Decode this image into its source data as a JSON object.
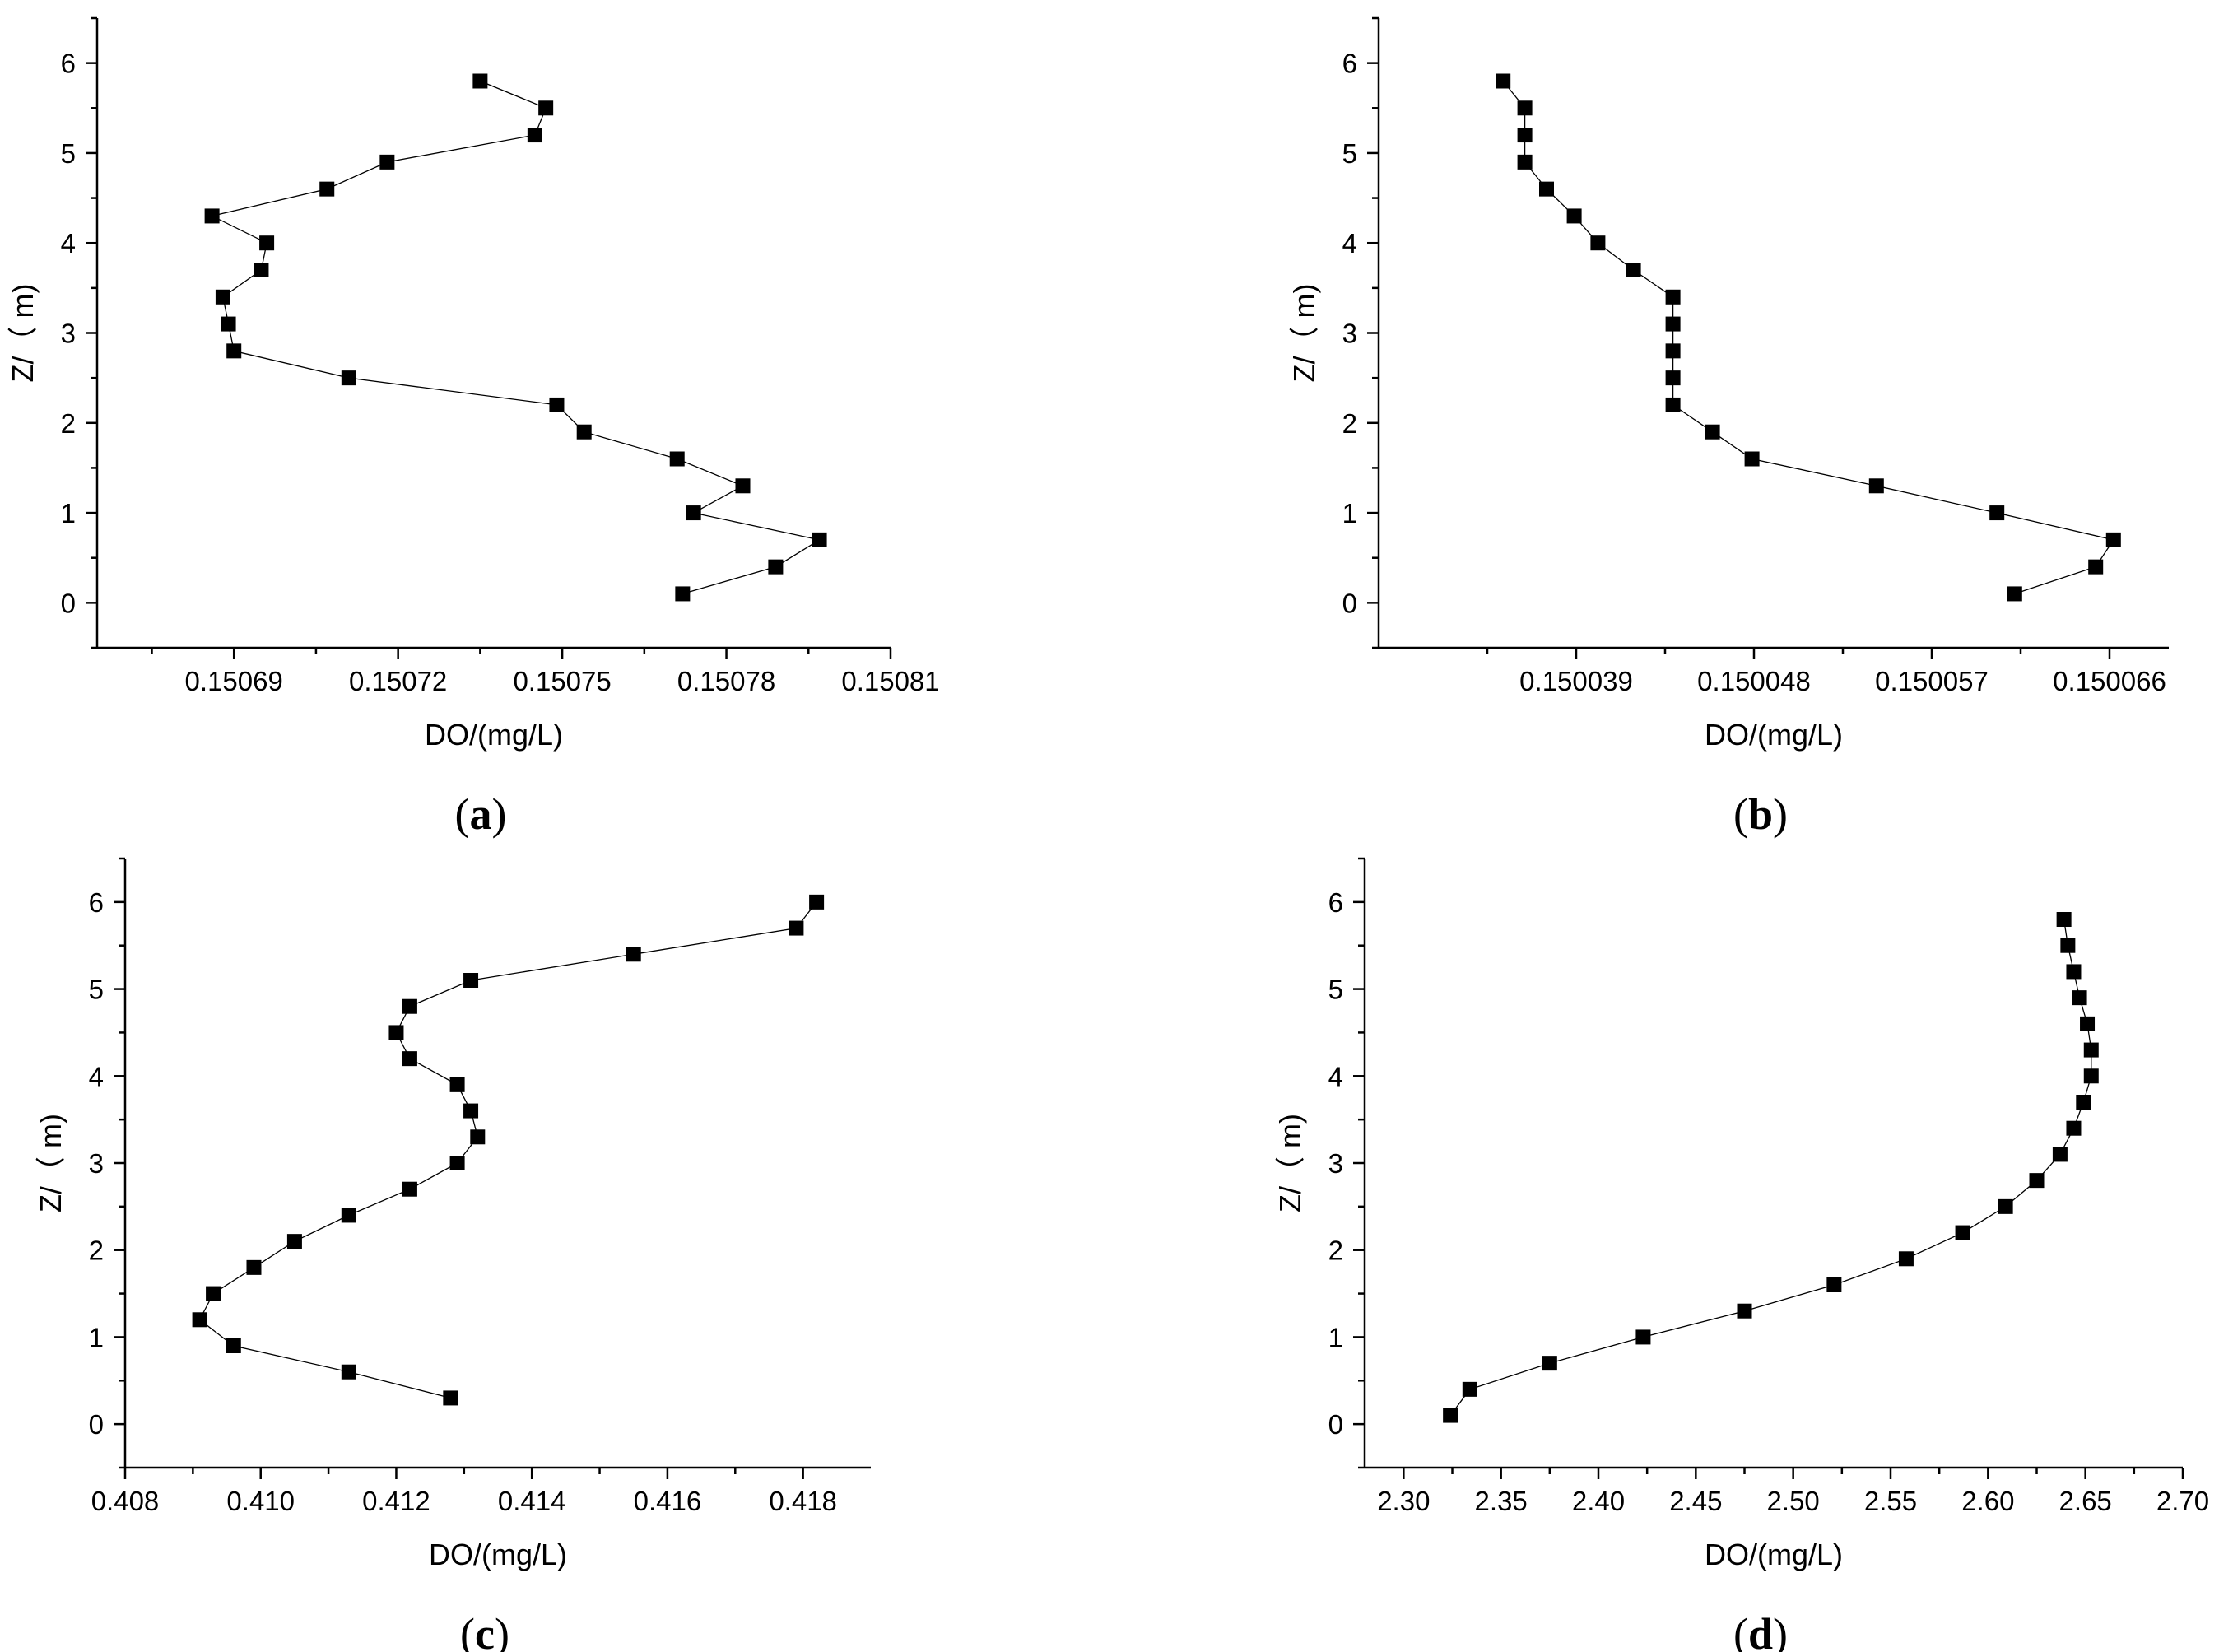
{
  "chart_data": [
    {
      "type": "line",
      "panel": "a",
      "xlabel": "DO/(mg/L)",
      "ylabel": "Z/（ m)",
      "xlim": [
        0.150665,
        0.15081
      ],
      "ylim": [
        -0.5,
        6.5
      ],
      "xticks": [
        0.15069,
        0.15072,
        0.15075,
        0.15078,
        0.15081
      ],
      "xtick_labels": [
        "0.15069",
        "0.15072",
        "0.15075",
        "0.15078",
        "0.15081"
      ],
      "yticks": [
        0,
        1,
        2,
        3,
        4,
        5,
        6
      ],
      "ytick_labels": [
        "0",
        "1",
        "2",
        "3",
        "4",
        "5",
        "6"
      ],
      "panel_label": {
        "open": "(",
        "letter": "a",
        "close": ")"
      },
      "series": [
        {
          "name": "DO",
          "x": [
            0.150735,
            0.150747,
            0.150745,
            0.150718,
            0.150707,
            0.150686,
            0.150696,
            0.150695,
            0.150688,
            0.150689,
            0.15069,
            0.150711,
            0.150749,
            0.150754,
            0.150771,
            0.150783,
            0.150774,
            0.150797,
            0.150789,
            0.150772
          ],
          "y": [
            5.8,
            5.5,
            5.2,
            4.9,
            4.6,
            4.3,
            4.0,
            3.7,
            3.4,
            3.1,
            2.8,
            2.5,
            2.2,
            1.9,
            1.6,
            1.3,
            1.0,
            0.7,
            0.4,
            0.1
          ]
        }
      ]
    },
    {
      "type": "line",
      "panel": "b",
      "xlabel": "DO/(mg/L)",
      "ylabel": "Z/（ m)",
      "xlim": [
        0.150029,
        0.150069
      ],
      "ylim": [
        -0.5,
        6.5
      ],
      "xticks": [
        0.150039,
        0.150048,
        0.150057,
        0.150066
      ],
      "xtick_labels": [
        "0.150039",
        "0.150048",
        "0.150057",
        "0.150066"
      ],
      "yticks": [
        0,
        1,
        2,
        3,
        4,
        5,
        6
      ],
      "ytick_labels": [
        "0",
        "1",
        "2",
        "3",
        "4",
        "5",
        "6"
      ],
      "panel_label": {
        "open": "(",
        "letter": "b",
        "close": ")"
      },
      "series": [
        {
          "name": "DO",
          "x": [
            0.1500353,
            0.1500364,
            0.1500364,
            0.1500364,
            0.1500375,
            0.1500389,
            0.1500401,
            0.1500419,
            0.1500439,
            0.1500439,
            0.1500439,
            0.1500439,
            0.1500439,
            0.1500459,
            0.1500479,
            0.1500542,
            0.1500603,
            0.1500662,
            0.1500653,
            0.1500612
          ],
          "y": [
            5.8,
            5.5,
            5.2,
            4.9,
            4.6,
            4.3,
            4.0,
            3.7,
            3.4,
            3.1,
            2.8,
            2.5,
            2.2,
            1.9,
            1.6,
            1.3,
            1.0,
            0.7,
            0.4,
            0.1
          ]
        }
      ]
    },
    {
      "type": "line",
      "panel": "c",
      "xlabel": "DO/(mg/L)",
      "ylabel": "Z/（ m)",
      "xlim": [
        0.408,
        0.419
      ],
      "ylim": [
        -0.5,
        6.5
      ],
      "xticks": [
        0.408,
        0.41,
        0.412,
        0.414,
        0.416,
        0.418
      ],
      "xtick_labels": [
        "0.408",
        "0.410",
        "0.412",
        "0.414",
        "0.416",
        "0.418"
      ],
      "yticks": [
        0,
        1,
        2,
        3,
        4,
        5,
        6
      ],
      "ytick_labels": [
        "0",
        "1",
        "2",
        "3",
        "4",
        "5",
        "6"
      ],
      "panel_label": {
        "open": "(",
        "letter": "c",
        "close": ")"
      },
      "series": [
        {
          "name": "DO",
          "x": [
            0.4182,
            0.4179,
            0.4155,
            0.4131,
            0.4122,
            0.412,
            0.4122,
            0.4129,
            0.4131,
            0.4132,
            0.4129,
            0.4122,
            0.4113,
            0.4105,
            0.4099,
            0.4093,
            0.4091,
            0.4096,
            0.4113,
            0.4128
          ],
          "y": [
            6.0,
            5.7,
            5.4,
            5.1,
            4.8,
            4.5,
            4.2,
            3.9,
            3.6,
            3.3,
            3.0,
            2.7,
            2.4,
            2.1,
            1.8,
            1.5,
            1.2,
            0.9,
            0.6,
            0.3
          ]
        }
      ]
    },
    {
      "type": "line",
      "panel": "d",
      "xlabel": "DO/(mg/L)",
      "ylabel": "Z/（ m)",
      "xlim": [
        2.28,
        2.7
      ],
      "ylim": [
        -0.5,
        6.5
      ],
      "xticks": [
        2.3,
        2.35,
        2.4,
        2.45,
        2.5,
        2.55,
        2.6,
        2.65,
        2.7
      ],
      "xtick_labels": [
        "2.30",
        "2.35",
        "2.40",
        "2.45",
        "2.50",
        "2.55",
        "2.60",
        "2.65",
        "2.70"
      ],
      "yticks": [
        0,
        1,
        2,
        3,
        4,
        5,
        6
      ],
      "ytick_labels": [
        "0",
        "1",
        "2",
        "3",
        "4",
        "5",
        "6"
      ],
      "panel_label": {
        "open": "(",
        "letter": "d",
        "close": ")"
      },
      "series": [
        {
          "name": "DO",
          "x": [
            2.639,
            2.641,
            2.644,
            2.647,
            2.651,
            2.653,
            2.653,
            2.649,
            2.644,
            2.637,
            2.625,
            2.609,
            2.587,
            2.558,
            2.521,
            2.475,
            2.423,
            2.375,
            2.334,
            2.324
          ],
          "y": [
            5.8,
            5.5,
            5.2,
            4.9,
            4.6,
            4.3,
            4.0,
            3.7,
            3.4,
            3.1,
            2.8,
            2.5,
            2.2,
            1.9,
            1.6,
            1.3,
            1.0,
            0.7,
            0.4,
            0.1
          ]
        }
      ]
    }
  ]
}
